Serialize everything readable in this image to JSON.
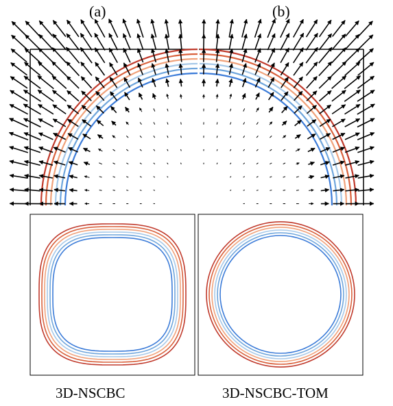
{
  "labels": {
    "a": "(a)",
    "b": "(b)"
  },
  "captions": {
    "a": "3D-NSCBC",
    "b": "3D-NSCBC-TOM"
  },
  "contour_colors": [
    "#c0392b",
    "#d9603b",
    "#f0a17a",
    "#a6c8e8",
    "#6ea5dc",
    "#3b7bd8"
  ],
  "arrow_color": "#000000",
  "panels": [
    {
      "id": "a",
      "method": "3D-NSCBC",
      "arrow_bias": "radial-left"
    },
    {
      "id": "b",
      "method": "3D-NSCBC-TOM",
      "arrow_bias": "radial-right"
    }
  ]
}
